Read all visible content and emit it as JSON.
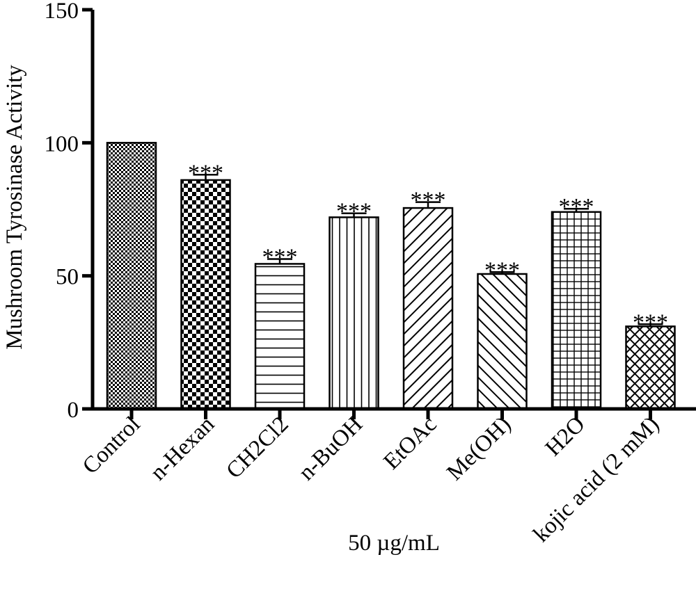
{
  "chart_data": {
    "type": "bar",
    "ylabel": "Mushroom Tyrosinase Activity",
    "xlabel": "50 µg/mL",
    "ylim": [
      0,
      150
    ],
    "yticks": [
      "0",
      "50",
      "100",
      "150"
    ],
    "grid": false,
    "categories": [
      "Control",
      "n-Hexan",
      "CH2Cl2",
      "n-BuOH",
      "EtOAc",
      "Me(OH)",
      "H2O",
      "kojic acid (2 mM)"
    ],
    "values": [
      100,
      86,
      54.5,
      72,
      75.5,
      50.7,
      74,
      31
    ],
    "errors": [
      0,
      2,
      1.8,
      1.5,
      2.2,
      0.7,
      1.2,
      0.8
    ],
    "significance": [
      "",
      "***",
      "***",
      "***",
      "***",
      "***",
      "***",
      "***"
    ],
    "patterns": [
      "fine-checker",
      "checker",
      "horizontal-lines",
      "vertical-lines",
      "diagonal-up",
      "diagonal-down",
      "grid",
      "diamond-crosshatch"
    ]
  }
}
